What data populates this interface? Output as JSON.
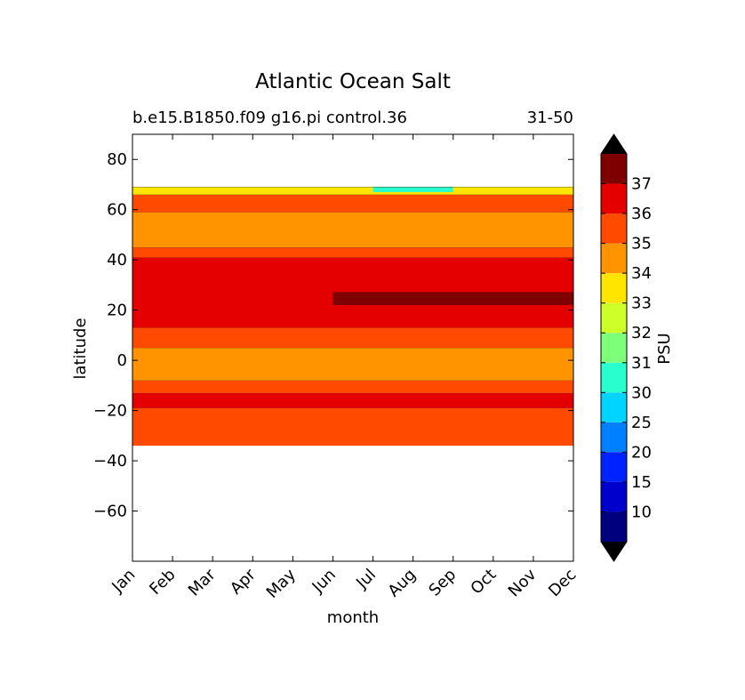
{
  "chart_data": {
    "type": "filled-contour",
    "title": "Atlantic Ocean Salt",
    "subtitle_left": "b.e15.B1850.f09 g16.pi control.36",
    "subtitle_right": "31-50",
    "xlabel": "month",
    "ylabel": "latitude",
    "x_ticks": [
      "Jan",
      "Feb",
      "Mar",
      "Apr",
      "May",
      "Jun",
      "Jul",
      "Aug",
      "Sep",
      "Oct",
      "Nov",
      "Dec"
    ],
    "y_ticks": [
      80,
      60,
      40,
      20,
      0,
      -20,
      -40,
      -60
    ],
    "y_tick_labels": [
      "80",
      "60",
      "40",
      "20",
      "0",
      "−20",
      "−40",
      "−60"
    ],
    "ylim": [
      -80,
      90
    ],
    "data_lat_range": [
      -34,
      69
    ],
    "colorbar": {
      "label": "PSU",
      "levels": [
        10,
        15,
        20,
        25,
        30,
        31,
        32,
        33,
        34,
        35,
        36,
        37
      ],
      "tick_labels": [
        "10",
        "15",
        "20",
        "25",
        "30",
        "31",
        "32",
        "33",
        "34",
        "35",
        "36",
        "37"
      ],
      "colors": [
        "#00007f",
        "#0000cd",
        "#0022ff",
        "#0080ff",
        "#00d4ff",
        "#29ffce",
        "#7dff7a",
        "#ceff29",
        "#ffe500",
        "#ff9400",
        "#ff4a00",
        "#e50000",
        "#7f0000"
      ],
      "extend": "both"
    },
    "zonal_bands": [
      {
        "lat_from": -34,
        "lat_to": -19,
        "salinity_class": "35-36"
      },
      {
        "lat_from": -19,
        "lat_to": -13,
        "salinity_class": "36-37"
      },
      {
        "lat_from": -13,
        "lat_to": -8,
        "salinity_class": "35-36"
      },
      {
        "lat_from": -8,
        "lat_to": 5,
        "salinity_class": "34-35"
      },
      {
        "lat_from": 5,
        "lat_to": 13,
        "salinity_class": "35-36"
      },
      {
        "lat_from": 13,
        "lat_to": 41,
        "salinity_class": "36-37"
      },
      {
        "lat_from": 22,
        "lat_to": 27,
        "salinity_class": ">37",
        "months": "Jun-Dec"
      },
      {
        "lat_from": 41,
        "lat_to": 45,
        "salinity_class": "35-36"
      },
      {
        "lat_from": 45,
        "lat_to": 59,
        "salinity_class": "34-35"
      },
      {
        "lat_from": 59,
        "lat_to": 66,
        "salinity_class": "35-36"
      },
      {
        "lat_from": 66,
        "lat_to": 69,
        "salinity_class": "33-34"
      },
      {
        "lat_from": 67,
        "lat_to": 69,
        "salinity_class": "30-32",
        "months": "Jul-Sep"
      }
    ]
  }
}
